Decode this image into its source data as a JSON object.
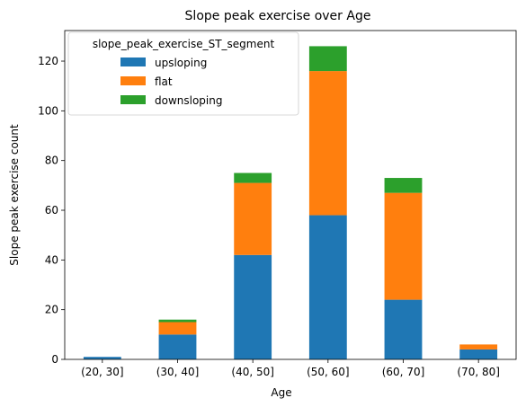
{
  "chart_data": {
    "type": "bar",
    "stacked": true,
    "title": "Slope peak exercise over Age",
    "xlabel": "Age",
    "ylabel": "Slope peak exercise count",
    "categories": [
      "(20, 30]",
      "(30, 40]",
      "(40, 50]",
      "(50, 60]",
      "(60, 70]",
      "(70, 80]"
    ],
    "series": [
      {
        "name": "upsloping",
        "color": "#1f77b4",
        "values": [
          1,
          10,
          42,
          58,
          24,
          4
        ]
      },
      {
        "name": "flat",
        "color": "#ff7f0e",
        "values": [
          0,
          5,
          29,
          58,
          43,
          2
        ]
      },
      {
        "name": "downsloping",
        "color": "#2ca02c",
        "values": [
          0,
          1,
          4,
          10,
          6,
          0
        ]
      }
    ],
    "ylim": [
      0,
      132.3
    ],
    "yticks": [
      0,
      20,
      40,
      60,
      80,
      100,
      120
    ],
    "legend": {
      "title": "slope_peak_exercise_ST_segment",
      "position": "upper-left"
    },
    "grid": false
  }
}
